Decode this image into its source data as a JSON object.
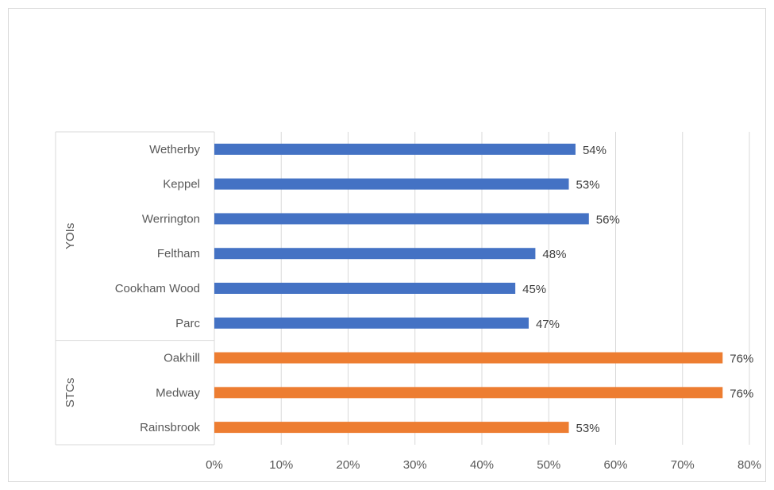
{
  "chart_data": {
    "type": "bar",
    "orientation": "horizontal",
    "groups": [
      {
        "name": "YOIs",
        "color": "#4472C4",
        "categories": [
          "Wetherby",
          "Keppel",
          "Werrington",
          "Feltham",
          "Cookham Wood",
          "Parc"
        ],
        "values": [
          54,
          53,
          56,
          48,
          45,
          47
        ]
      },
      {
        "name": "STCs",
        "color": "#ED7D31",
        "categories": [
          "Oakhill",
          "Medway",
          "Rainsbrook"
        ],
        "values": [
          76,
          76,
          53
        ]
      }
    ],
    "data_label_suffix": "%",
    "xlim": [
      0,
      80
    ],
    "x_ticks": [
      "0%",
      "10%",
      "20%",
      "30%",
      "40%",
      "50%",
      "60%",
      "70%",
      "80%"
    ],
    "grid": "vertical",
    "title": "",
    "xlabel": "",
    "ylabel": ""
  }
}
